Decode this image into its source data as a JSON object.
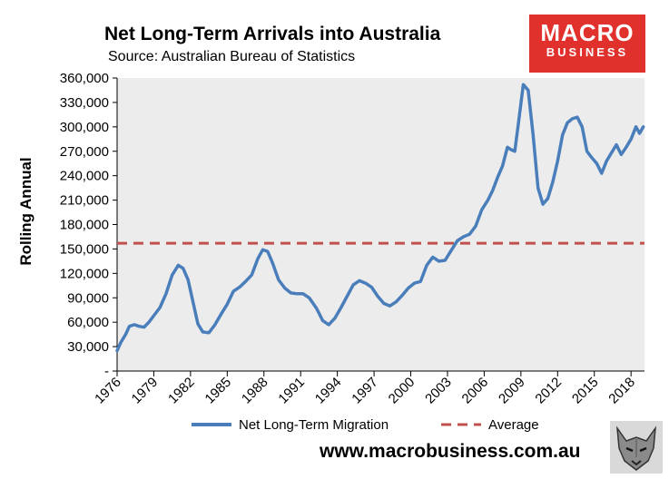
{
  "header": {
    "title": "Net Long-Term Arrivals into Australia",
    "subtitle": "Source: Australian Bureau of Statistics"
  },
  "brand": {
    "line1": "MACRO",
    "line2": "BUSINESS",
    "color": "#e0312d"
  },
  "footer": {
    "url": "www.macrobusiness.com.au"
  },
  "wolf_label": "wolf-logo",
  "chart_data": {
    "type": "line",
    "title": "Net Long-Term Arrivals into Australia",
    "xlabel": "",
    "ylabel": "Rolling Annual",
    "xlim": [
      1976,
      2019.1
    ],
    "ylim": [
      0,
      360000
    ],
    "y_ticks": [
      0,
      30000,
      60000,
      90000,
      120000,
      150000,
      180000,
      210000,
      240000,
      270000,
      300000,
      330000,
      360000
    ],
    "y_tick_labels": [
      "-",
      "30,000",
      "60,000",
      "90,000",
      "120,000",
      "150,000",
      "180,000",
      "210,000",
      "240,000",
      "270,000",
      "300,000",
      "330,000",
      "360,000"
    ],
    "x_ticks": [
      1976,
      1979,
      1982,
      1985,
      1988,
      1991,
      1994,
      1997,
      2000,
      2003,
      2006,
      2009,
      2012,
      2015,
      2018
    ],
    "x_tick_labels": [
      "1976",
      "1979",
      "1982",
      "1985",
      "1988",
      "1991",
      "1994",
      "1997",
      "2000",
      "2003",
      "2006",
      "2009",
      "2012",
      "2015",
      "2018"
    ],
    "grid": false,
    "legend": "bottom",
    "series": [
      {
        "name": "Net Long-Term Migration",
        "color": "#4a7ebb",
        "x": [
          1976.0,
          1976.3,
          1976.7,
          1977.0,
          1977.4,
          1977.8,
          1978.2,
          1978.6,
          1979.0,
          1979.5,
          1980.0,
          1980.5,
          1981.0,
          1981.4,
          1981.8,
          1982.2,
          1982.6,
          1983.0,
          1983.5,
          1984.0,
          1984.5,
          1985.0,
          1985.5,
          1986.0,
          1986.5,
          1987.0,
          1987.5,
          1987.9,
          1988.3,
          1988.7,
          1989.2,
          1989.7,
          1990.2,
          1990.7,
          1991.2,
          1991.7,
          1992.3,
          1992.8,
          1993.3,
          1993.8,
          1994.3,
          1994.8,
          1995.3,
          1995.8,
          1996.3,
          1996.8,
          1997.3,
          1997.8,
          1998.3,
          1998.8,
          1999.3,
          1999.8,
          2000.3,
          2000.8,
          2001.3,
          2001.8,
          2002.3,
          2002.8,
          2003.3,
          2003.8,
          2004.3,
          2004.8,
          2005.3,
          2005.8,
          2006.3,
          2006.7,
          2007.1,
          2007.5,
          2007.9,
          2008.2,
          2008.5,
          2008.8,
          2009.2,
          2009.6,
          2010.0,
          2010.4,
          2010.8,
          2011.2,
          2011.6,
          2012.0,
          2012.4,
          2012.8,
          2013.2,
          2013.6,
          2014.0,
          2014.4,
          2014.8,
          2015.2,
          2015.6,
          2016.0,
          2016.4,
          2016.8,
          2017.2,
          2017.6,
          2018.0,
          2018.4,
          2018.7,
          2019.0
        ],
        "values": [
          25000,
          35000,
          45000,
          55000,
          57000,
          55000,
          54000,
          60000,
          68000,
          78000,
          95000,
          118000,
          130000,
          126000,
          112000,
          85000,
          58000,
          48000,
          47000,
          57000,
          70000,
          82000,
          98000,
          103000,
          110000,
          118000,
          138000,
          149000,
          147000,
          133000,
          112000,
          102000,
          96000,
          95000,
          95000,
          90000,
          77000,
          62000,
          57000,
          65000,
          78000,
          92000,
          106000,
          111000,
          108000,
          103000,
          92000,
          83000,
          80000,
          85000,
          93000,
          102000,
          108000,
          110000,
          130000,
          140000,
          135000,
          136000,
          148000,
          160000,
          165000,
          168000,
          178000,
          198000,
          210000,
          222000,
          238000,
          252000,
          275000,
          272000,
          270000,
          305000,
          352000,
          345000,
          290000,
          225000,
          205000,
          212000,
          232000,
          258000,
          290000,
          305000,
          310000,
          312000,
          300000,
          270000,
          262000,
          255000,
          243000,
          258000,
          268000,
          278000,
          266000,
          275000,
          285000,
          300000,
          292000,
          300000
        ]
      },
      {
        "name": "Average",
        "color": "#c0504d",
        "constant": 157000
      }
    ]
  }
}
